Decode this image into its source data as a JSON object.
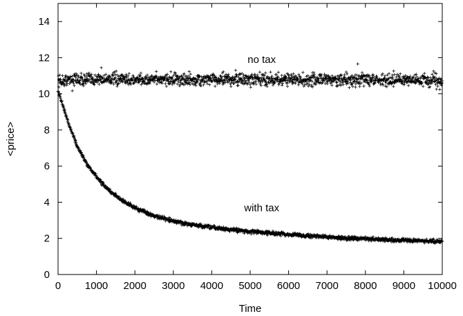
{
  "chart_data": {
    "type": "scatter",
    "title": "",
    "xlabel": "Time",
    "ylabel": "<price>",
    "xlim": [
      0,
      10000
    ],
    "ylim": [
      0,
      15
    ],
    "xticks": [
      0,
      1000,
      2000,
      3000,
      4000,
      5000,
      6000,
      7000,
      8000,
      9000,
      10000
    ],
    "yticks": [
      0,
      2,
      4,
      6,
      8,
      10,
      12,
      14
    ],
    "grid": false,
    "marker": "+",
    "color": "#000000",
    "annotations": [
      {
        "text": "no tax",
        "x": 5300,
        "y": 11.9
      },
      {
        "text": "with tax",
        "x": 5300,
        "y": 3.7
      }
    ],
    "series": [
      {
        "x": [
          0,
          250,
          500,
          750,
          1000,
          1250,
          1500,
          1750,
          2000,
          2500,
          3000,
          3500,
          4000,
          4500,
          5000,
          5500,
          6000,
          6500,
          7000,
          7500,
          8000,
          8500,
          9000,
          9500,
          10000
        ],
        "y": [
          10.7,
          10.75,
          10.8,
          10.75,
          10.8,
          10.85,
          10.8,
          10.8,
          10.75,
          10.8,
          10.8,
          10.75,
          10.8,
          10.8,
          10.75,
          10.8,
          10.8,
          10.75,
          10.8,
          10.75,
          10.8,
          10.75,
          10.8,
          10.75,
          10.7
        ]
      },
      {
        "x": [
          0,
          100,
          250,
          500,
          750,
          1000,
          1250,
          1500,
          1750,
          2000,
          2500,
          3000,
          3500,
          4000,
          4500,
          5000,
          5500,
          6000,
          6500,
          7000,
          7500,
          8000,
          8500,
          9000,
          9500,
          10000
        ],
        "y": [
          10.2,
          9.5,
          8.5,
          7.1,
          6.1,
          5.4,
          4.8,
          4.35,
          4.0,
          3.7,
          3.25,
          2.95,
          2.75,
          2.6,
          2.48,
          2.38,
          2.3,
          2.22,
          2.15,
          2.08,
          2.02,
          1.97,
          1.93,
          1.89,
          1.86,
          1.83
        ]
      }
    ]
  }
}
